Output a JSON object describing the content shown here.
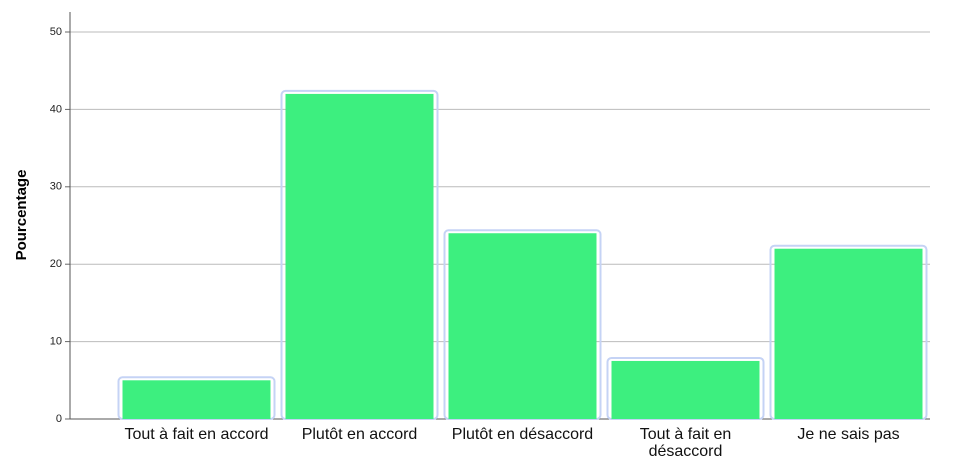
{
  "chart_data": {
    "type": "bar",
    "y_label": "Pourcentage",
    "categories": [
      "Tout à fait en accord",
      "Plutôt en accord",
      "Plutôt en désaccord",
      "Tout à fait en désaccord",
      "Je ne sais pas"
    ],
    "values": [
      5,
      42,
      24,
      7.5,
      22
    ],
    "color": "#3def7f",
    "ylim": [
      0,
      50
    ],
    "yticks": [
      0,
      10,
      20,
      30,
      40,
      50
    ],
    "grid": true
  }
}
